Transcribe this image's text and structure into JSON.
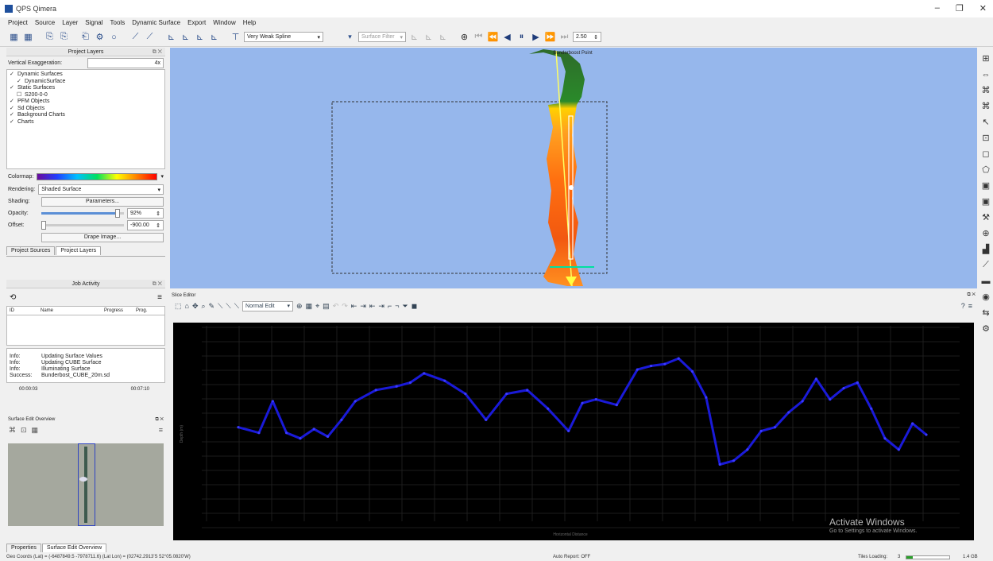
{
  "window": {
    "title": "QPS Qimera",
    "min": "–",
    "max": "❐",
    "close": "✕"
  },
  "menu": [
    "Project",
    "Source",
    "Layer",
    "Signal",
    "Tools",
    "Dynamic Surface",
    "Export",
    "Window",
    "Help"
  ],
  "toolbar": {
    "filter_combo": "Very Weak Spline",
    "surface_combo": "Surface Filter",
    "speed": "2.50"
  },
  "project_layers": {
    "title": "Project Layers",
    "vertical_exaggeration_label": "Vertical Exaggeration:",
    "vertical_exaggeration_value": "4x",
    "tree": [
      {
        "label": "Dynamic Surfaces",
        "level": 0,
        "checked": true
      },
      {
        "label": "DynamicSurface",
        "level": 1,
        "checked": true
      },
      {
        "label": "Static Surfaces",
        "level": 0,
        "checked": true
      },
      {
        "label": "S200-0-0",
        "level": 1,
        "checked": false
      },
      {
        "label": "PFM Objects",
        "level": 0,
        "checked": true
      },
      {
        "label": "Sd Objects",
        "level": 0,
        "checked": true
      },
      {
        "label": "Background Charts",
        "level": 0,
        "checked": true
      },
      {
        "label": "Charts",
        "level": 0,
        "checked": true
      }
    ],
    "colormap_label": "Colormap:",
    "rendering_label": "Rendering:",
    "rendering_value": "Shaded Surface",
    "shading_label": "Shading:",
    "parameters_button": "Parameters...",
    "opacity_label": "Opacity:",
    "opacity_value": "92%",
    "opacity_fraction": 0.92,
    "offset_label": "Offset:",
    "offset_value": "-900.00",
    "drape_button": "Drape Image...",
    "tabs": [
      "Project Sources",
      "Project Layers"
    ]
  },
  "job_activity": {
    "title": "Job Activity",
    "columns": [
      "ID",
      "Name",
      "Progress",
      "Prog."
    ],
    "log": [
      {
        "level": "Info:",
        "msg": "Updating Surface Values"
      },
      {
        "level": "Info:",
        "msg": "Updating CUBE Surface"
      },
      {
        "level": "Info:",
        "msg": "Illuminating Surface"
      },
      {
        "level": "Success:",
        "msg": "Bunderbost_CUBE_20m.sd"
      }
    ],
    "time_left": "00:00:03",
    "time_right": "00:07:10"
  },
  "surface_edit_overview": {
    "title": "Surface Edit Overview"
  },
  "bottom_tabs": [
    "Properties",
    "Surface Edit Overview"
  ],
  "viewer": {
    "top_label": "Bunderboost Point"
  },
  "slice_editor": {
    "title": "Slice Editor",
    "mode_combo": "Normal Edit",
    "y_axis_label": "Depth (m)",
    "x_axis_label": "Horizontal Distance",
    "watermark_title": "Activate Windows",
    "watermark_sub": "Go to Settings to activate Windows."
  },
  "chart_data": {
    "type": "scatter",
    "title": "",
    "xlabel": "Horizontal Distance",
    "ylabel": "Depth (m)",
    "xlim": [
      0,
      100
    ],
    "ylim": [
      0,
      100
    ],
    "x": [
      0,
      3,
      5,
      7,
      9,
      11,
      13,
      15,
      17,
      20,
      23,
      25,
      27,
      30,
      33,
      36,
      39,
      42,
      45,
      48,
      50,
      52,
      55,
      58,
      60,
      62,
      64,
      66,
      68,
      70,
      72,
      74,
      76,
      78,
      80,
      82,
      84,
      86,
      88,
      90,
      92,
      94,
      96,
      98,
      100
    ],
    "y": [
      48,
      45,
      62,
      45,
      42,
      47,
      43,
      52,
      62,
      68,
      70,
      72,
      77,
      73,
      66,
      52,
      66,
      68,
      58,
      46,
      61,
      63,
      60,
      79,
      81,
      82,
      85,
      78,
      64,
      28,
      30,
      36,
      46,
      48,
      56,
      62,
      74,
      63,
      69,
      72,
      58,
      42,
      36,
      50,
      44
    ]
  },
  "status": {
    "geo_coords": "Geo Coords (Lat) = (-6487849.5 -7978711.6)  (Lat Lon) = (02742.2913'S 52°05.0820'W)",
    "auto_report": "Auto Report: OFF",
    "tiles_loading": "Tiles Loading:",
    "tiles_count": "3",
    "mem": "1.4 GB"
  }
}
